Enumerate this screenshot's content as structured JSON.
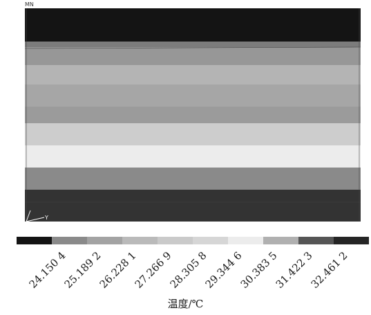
{
  "top_label": "MN",
  "triad_label": "Y",
  "unit_label": "温度/℃",
  "bands": [
    {
      "level": 0,
      "color": "#141414"
    },
    {
      "level": 2,
      "color": "#7c7c7c"
    },
    {
      "level": 3,
      "color": "#979797"
    },
    {
      "level": 5,
      "color": "#b4b4b4"
    },
    {
      "level": 4,
      "color": "#a6a6a6"
    },
    {
      "level": 3,
      "color": "#9b9b9b"
    },
    {
      "level": 6,
      "color": "#cdcdcd"
    },
    {
      "level": 7,
      "color": "#ececec"
    },
    {
      "level": 3,
      "color": "#8a8a8a"
    },
    {
      "level": 1,
      "color": "#333333"
    }
  ],
  "legend": {
    "colors": [
      "#141414",
      "#8a8a8a",
      "#a3a3a3",
      "#bababa",
      "#cacaca",
      "#d6d6d6",
      "#ececec",
      "#b0b0b0",
      "#555555",
      "#252525"
    ],
    "tick_labels": [
      "24.150 4",
      "25.189 2",
      "26.228 1",
      "27.266 9",
      "28.305 8",
      "29.344 6",
      "30.383 5",
      "31.422 3",
      "32.461 2"
    ]
  }
}
